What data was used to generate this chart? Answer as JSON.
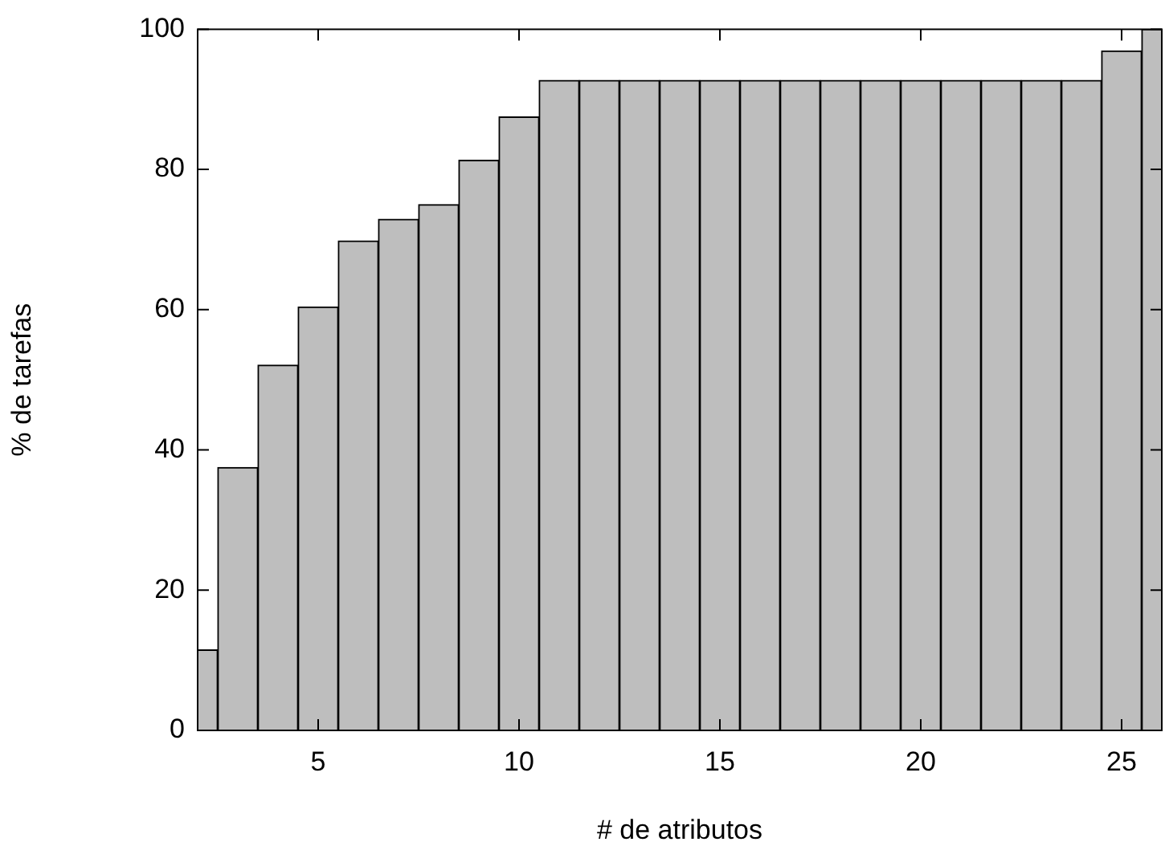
{
  "chart_data": {
    "type": "bar",
    "xlabel": "# de atributos",
    "ylabel": "% de tarefas",
    "x": [
      2,
      3,
      4,
      5,
      6,
      7,
      8,
      9,
      10,
      11,
      12,
      13,
      14,
      15,
      16,
      17,
      18,
      19,
      20,
      21,
      22,
      23,
      24,
      25,
      26
    ],
    "values": [
      11.5,
      37.5,
      52.1,
      60.4,
      69.8,
      72.9,
      75.0,
      81.3,
      87.5,
      92.7,
      92.7,
      92.7,
      92.7,
      92.7,
      92.7,
      92.7,
      92.7,
      92.7,
      92.7,
      92.7,
      92.7,
      92.7,
      92.7,
      96.9,
      100
    ],
    "color": "#bebebe",
    "xlim": [
      2,
      26
    ],
    "xticks": [
      5,
      10,
      15,
      20,
      25
    ],
    "ylim": [
      0,
      100
    ],
    "yticks": [
      0,
      20,
      40,
      60,
      80,
      100
    ],
    "grid": false,
    "legend": false
  }
}
